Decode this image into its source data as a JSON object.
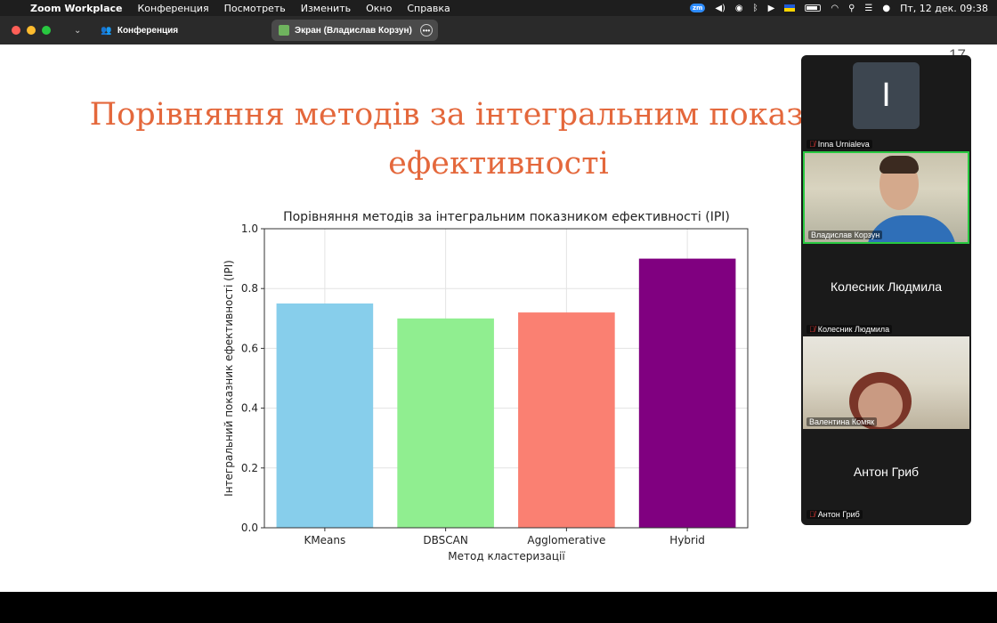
{
  "menubar": {
    "items": [
      "Zoom Workplace",
      "Конференция",
      "Посмотреть",
      "Изменить",
      "Окно",
      "Справка"
    ],
    "status": {
      "zoom_badge": "zm",
      "datetime": "Пт, 12 дек.  09:38"
    }
  },
  "toolbar": {
    "meeting_label": "Конференция",
    "screen_share_label": "Экран (Владислав Корзун)"
  },
  "slide": {
    "number": "17",
    "title_line1": "Порівняння методів за інтегральним показником",
    "title_line2": "ефективності"
  },
  "chart_data": {
    "type": "bar",
    "title": "Порівняння методів за інтегральним показником ефективності (IPI)",
    "xlabel": "Метод кластеризації",
    "ylabel": "Інтегральний показник ефективності (IPI)",
    "categories": [
      "KMeans",
      "DBSCAN",
      "Agglomerative",
      "Hybrid"
    ],
    "values": [
      0.75,
      0.7,
      0.72,
      0.9
    ],
    "colors": [
      "#87ceeb",
      "#90ee90",
      "#fa8072",
      "#800080"
    ],
    "ylim": [
      0,
      1.0
    ],
    "yticks": [
      "0.0",
      "0.2",
      "0.4",
      "0.6",
      "0.8",
      "1.0"
    ],
    "grid": true
  },
  "participants": [
    {
      "name": "Inna Urnialeva",
      "avatar_letter": "I",
      "muted": true,
      "video": false
    },
    {
      "name": "Владислав Корзун",
      "muted": false,
      "video": true,
      "active_speaker": true
    },
    {
      "name": "Колесник Людмила",
      "display_name": "Колесник Людмила",
      "muted": true,
      "video": false
    },
    {
      "name": "Валентина Комяк",
      "muted": false,
      "video": true
    },
    {
      "name": "Антон Гриб",
      "display_name": "Антон Гриб",
      "muted": true,
      "video": false
    }
  ]
}
